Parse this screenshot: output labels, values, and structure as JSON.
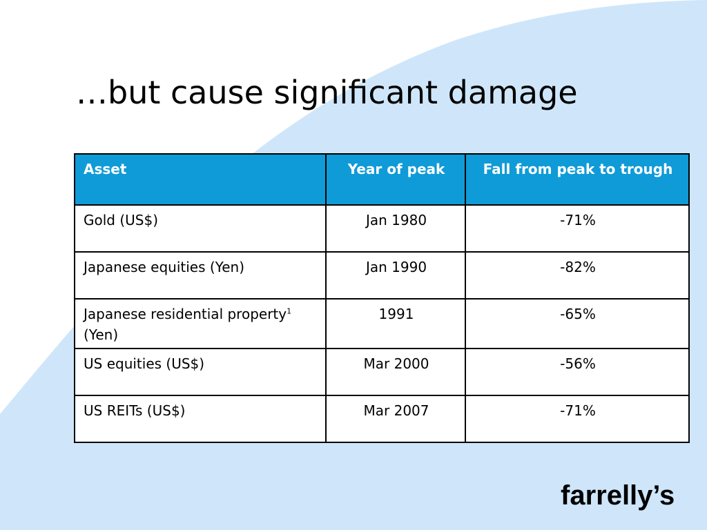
{
  "slide": {
    "title": "…but cause significant damage",
    "brand": "farrelly’s"
  },
  "table": {
    "headers": {
      "asset": "Asset",
      "year": "Year of peak",
      "fall": "Fall from peak to trough"
    },
    "rows": [
      {
        "asset": "Gold (US$)",
        "year": "Jan 1980",
        "fall": "-71%"
      },
      {
        "asset": "Japanese equities (Yen)",
        "year": "Jan 1990",
        "fall": "-82%"
      },
      {
        "asset_main": "Japanese residential property",
        "asset_note": "1",
        "asset_suffix": " (Yen)",
        "year": "1991",
        "fall": "-65%"
      },
      {
        "asset": "US equities (US$)",
        "year": "Mar 2000",
        "fall": "-56%"
      },
      {
        "asset": "US REITs (US$)",
        "year": "Mar 2007",
        "fall": "-71%"
      }
    ]
  },
  "colors": {
    "background_shape": "#cfe6fa",
    "header_fill": "#0f9bd7",
    "header_text": "#ffffff",
    "border": "#000000"
  }
}
